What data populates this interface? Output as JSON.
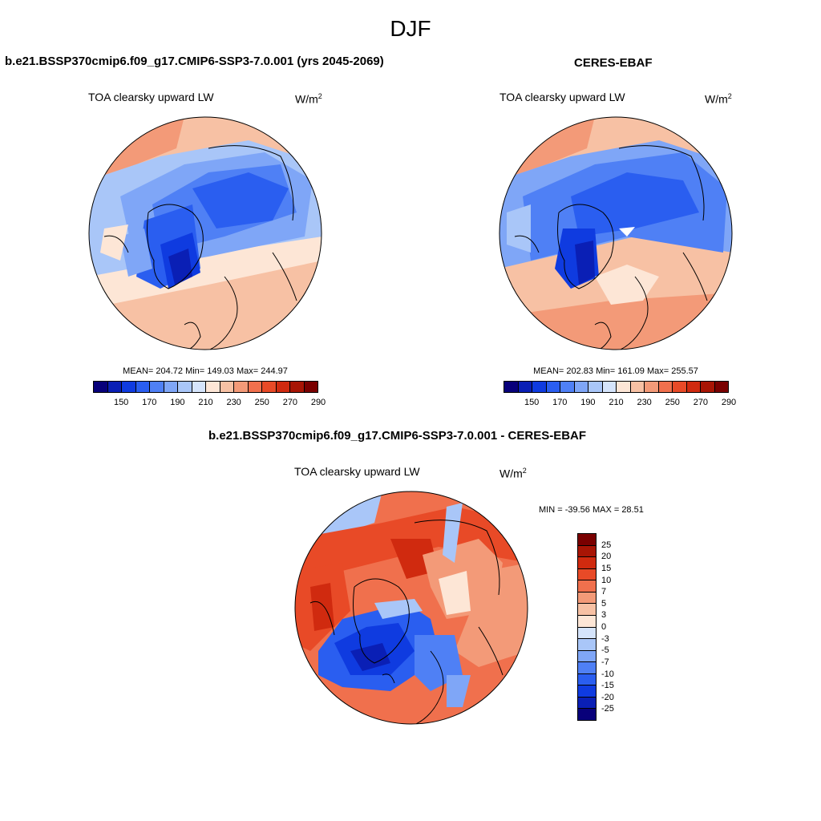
{
  "title": "DJF",
  "panels": {
    "left": {
      "title": "b.e21.BSSP370cmip6.f09_g17.CMIP6-SSP3-7.0.001 (yrs 2045-2069)",
      "variable": "TOA clearsky upward LW",
      "unit": "W/m",
      "unit_sup": "2",
      "stats": "MEAN= 204.72  Min= 149.03  Max= 244.97"
    },
    "right": {
      "title": "CERES-EBAF",
      "variable": "TOA clearsky upward LW",
      "unit": "W/m",
      "unit_sup": "2",
      "stats": "MEAN= 202.83  Min= 161.09  Max= 255.57"
    },
    "diff": {
      "title": "b.e21.BSSP370cmip6.f09_g17.CMIP6-SSP3-7.0.001 - CERES-EBAF",
      "variable": "TOA clearsky upward LW",
      "unit": "W/m",
      "unit_sup": "2",
      "stats": "MIN = -39.56 MAX =  28.51"
    }
  },
  "colorbar_main": {
    "colors": [
      "#08007a",
      "#0a1fb5",
      "#0f3be0",
      "#2a5ef0",
      "#4f80f5",
      "#7fa6f7",
      "#a9c6f8",
      "#d5e4fb",
      "#fde6d6",
      "#f7c1a4",
      "#f39a78",
      "#f0704d",
      "#e84a27",
      "#d02a0f",
      "#a81505",
      "#7a0000"
    ],
    "ticks": [
      "150",
      "170",
      "190",
      "210",
      "230",
      "250",
      "270",
      "290"
    ]
  },
  "colorbar_diff": {
    "colors": [
      "#7a0000",
      "#a81505",
      "#d02a0f",
      "#e84a27",
      "#f0704d",
      "#f39a78",
      "#f7c1a4",
      "#fde6d6",
      "#d5e4fb",
      "#a9c6f8",
      "#7fa6f7",
      "#4f80f5",
      "#2a5ef0",
      "#0f3be0",
      "#0a1fb5",
      "#08007a"
    ],
    "ticks": [
      "25",
      "20",
      "15",
      "10",
      "7",
      "5",
      "3",
      "0",
      "-3",
      "-5",
      "-7",
      "-10",
      "-15",
      "-20",
      "-25"
    ]
  }
}
